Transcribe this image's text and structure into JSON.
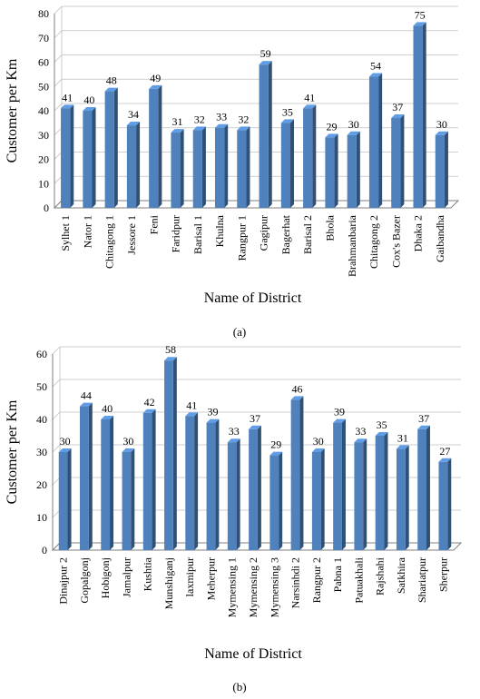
{
  "chart_data": [
    {
      "type": "bar",
      "caption": "(a)",
      "xlabel": "Name of District",
      "ylabel": "Customer per Km",
      "ylim": [
        0,
        80
      ],
      "yticks": [
        0,
        10,
        20,
        30,
        40,
        50,
        60,
        70,
        80
      ],
      "grid": true,
      "legend": "none",
      "bar_color": "#4f81bd",
      "categories": [
        "Sylhet 1",
        "Nator 1",
        "Chitagong 1",
        "Jessore 1",
        "Feni",
        "Faridpur",
        "Barisal 1",
        "Khulna",
        "Rangpur 1",
        "Gagipur",
        "Bagerhat",
        "Barisal 2",
        "Bhola",
        "Brahmanbaria",
        "Chitagong 2",
        "Cox's Bazer",
        "Dhaka 2",
        "Gaibandha"
      ],
      "values": [
        41,
        40,
        48,
        34,
        49,
        31,
        32,
        33,
        32,
        59,
        35,
        41,
        29,
        30,
        54,
        37,
        75,
        30
      ]
    },
    {
      "type": "bar",
      "caption": "(b)",
      "xlabel": "Name of District",
      "ylabel": "Customer per Km",
      "ylim": [
        0,
        60
      ],
      "yticks": [
        0,
        10,
        20,
        30,
        40,
        50,
        60
      ],
      "grid": true,
      "legend": "none",
      "bar_color": "#4f81bd",
      "categories": [
        "Dinajpur 2",
        "Gopalgonj",
        "Hobigonj",
        "Jamalpur",
        "Kushtia",
        "Munshiganj",
        "laxmipur",
        "Meherpur",
        "Mymensing 1",
        "Mymensing 2",
        "Mymensing 3",
        "Narsinhdi 2",
        "Rangpur 2",
        "Pabna 1",
        "Patuakhali",
        "Rajshahi",
        "Satkhira",
        "Shariatpur",
        "Sherpur"
      ],
      "values": [
        30,
        44,
        40,
        30,
        42,
        58,
        41,
        39,
        33,
        37,
        29,
        46,
        30,
        39,
        33,
        35,
        31,
        37,
        27
      ]
    }
  ]
}
